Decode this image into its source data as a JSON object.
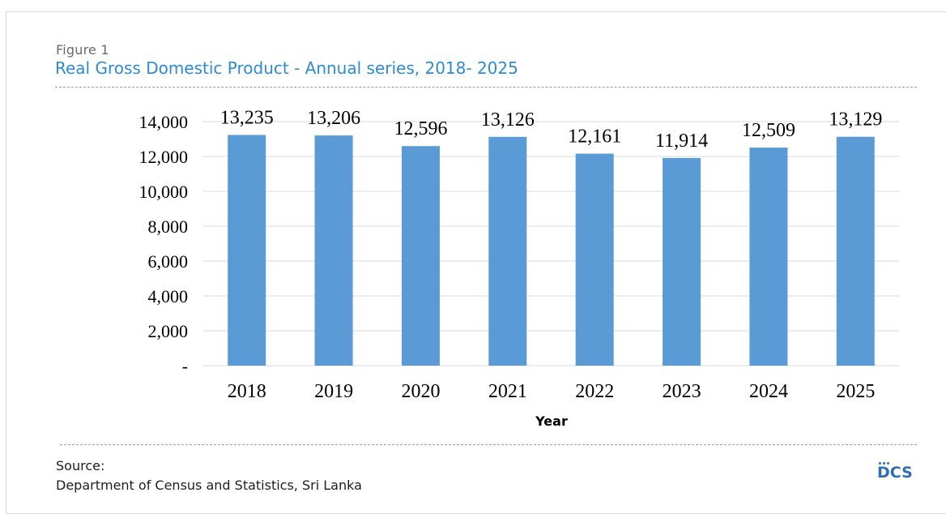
{
  "figure": {
    "label": "Figure 1",
    "title": "Real Gross Domestic Product - Annual series, 2018- 2025"
  },
  "source": {
    "label": "Source:",
    "text": "Department of Census and Statistics, Sri Lanka"
  },
  "logo": {
    "text": "DCS"
  },
  "colors": {
    "bar": "#5b9bd5",
    "title": "#2e8bd1",
    "gridline": "#d9d9d9"
  },
  "chart_data": {
    "type": "bar",
    "categories": [
      "2018",
      "2019",
      "2020",
      "2021",
      "2022",
      "2023",
      "2024",
      "2025"
    ],
    "values": [
      13235,
      13206,
      12596,
      13126,
      12161,
      11914,
      12509,
      13129
    ],
    "value_labels": [
      "13,235",
      "13,206",
      "12,596",
      "13,126",
      "12,161",
      "11,914",
      "12,509",
      "13,129"
    ],
    "xlabel": "Year",
    "ylabel": "",
    "ylim": [
      0,
      14000
    ],
    "yticks": [
      0,
      2000,
      4000,
      6000,
      8000,
      10000,
      12000,
      14000
    ],
    "ytick_labels": [
      "-",
      "2,000",
      "4,000",
      "6,000",
      "8,000",
      "10,000",
      "12,000",
      "14,000"
    ],
    "grid": true,
    "legend": "none"
  }
}
